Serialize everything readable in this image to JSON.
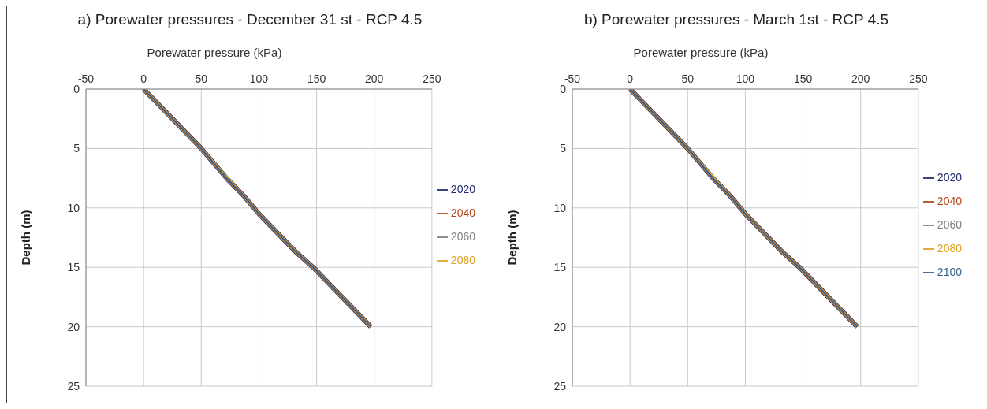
{
  "chart_data": [
    {
      "type": "line",
      "title": "a) Porewater pressures - December 31 st - RCP 4.5",
      "xlabel": "Porewater pressure (kPa)",
      "ylabel": "Depth (m)",
      "x": [
        0,
        50,
        72,
        87,
        100,
        133,
        147,
        197
      ],
      "xlim": [
        -50,
        250
      ],
      "xticks": [
        -50,
        0,
        50,
        100,
        150,
        200,
        250
      ],
      "ylim": [
        25,
        0
      ],
      "yticks": [
        0,
        5,
        10,
        15,
        20,
        25
      ],
      "grid": true,
      "legend": "right",
      "series": [
        {
          "name": "2020",
          "color": "#1f2a6b",
          "values": [
            0,
            5,
            7.5,
            9,
            10.5,
            13.8,
            15,
            20
          ]
        },
        {
          "name": "2040",
          "color": "#b5441b",
          "values": [
            0,
            5,
            7.5,
            9,
            10.5,
            13.8,
            15,
            20
          ]
        },
        {
          "name": "2060",
          "color": "#7f7f7f",
          "values": [
            0,
            5,
            7.5,
            9,
            10.5,
            13.8,
            15,
            20
          ]
        },
        {
          "name": "2080",
          "color": "#e0a020",
          "values": [
            0,
            5,
            7.4,
            9,
            10.5,
            13.8,
            15,
            20
          ]
        },
        {
          "color": "#2e5f8a",
          "values": [
            0,
            5,
            7.5,
            9,
            10.5,
            13.8,
            15,
            20
          ]
        }
      ]
    },
    {
      "type": "line",
      "title": "b) Porewater pressures - March 1st - RCP 4.5",
      "xlabel": "Porewater pressure (kPa)",
      "ylabel": "Depth (m)",
      "x": [
        0,
        50,
        72,
        87,
        100,
        133,
        147,
        197
      ],
      "xlim": [
        -50,
        250
      ],
      "xticks": [
        -50,
        0,
        50,
        100,
        150,
        200,
        250
      ],
      "ylim": [
        25,
        0
      ],
      "yticks": [
        0,
        5,
        10,
        15,
        20,
        25
      ],
      "grid": true,
      "legend": "right",
      "series": [
        {
          "name": "2020",
          "color": "#1f2a6b",
          "values": [
            0,
            5,
            7.5,
            9,
            10.5,
            13.8,
            15,
            20
          ]
        },
        {
          "name": "2040",
          "color": "#b5441b",
          "values": [
            0,
            5,
            7.5,
            9,
            10.5,
            13.8,
            15,
            20
          ]
        },
        {
          "name": "2060",
          "color": "#7f7f7f",
          "values": [
            0,
            5,
            7.5,
            9,
            10.5,
            13.8,
            15,
            20
          ]
        },
        {
          "name": "2080",
          "color": "#e0a020",
          "values": [
            0,
            5,
            7.4,
            9,
            10.5,
            13.8,
            15,
            20
          ]
        },
        {
          "name": "2100",
          "color": "#2e5f8a",
          "values": [
            0,
            5,
            7.5,
            9,
            10.5,
            13.8,
            15,
            20
          ]
        }
      ]
    }
  ]
}
